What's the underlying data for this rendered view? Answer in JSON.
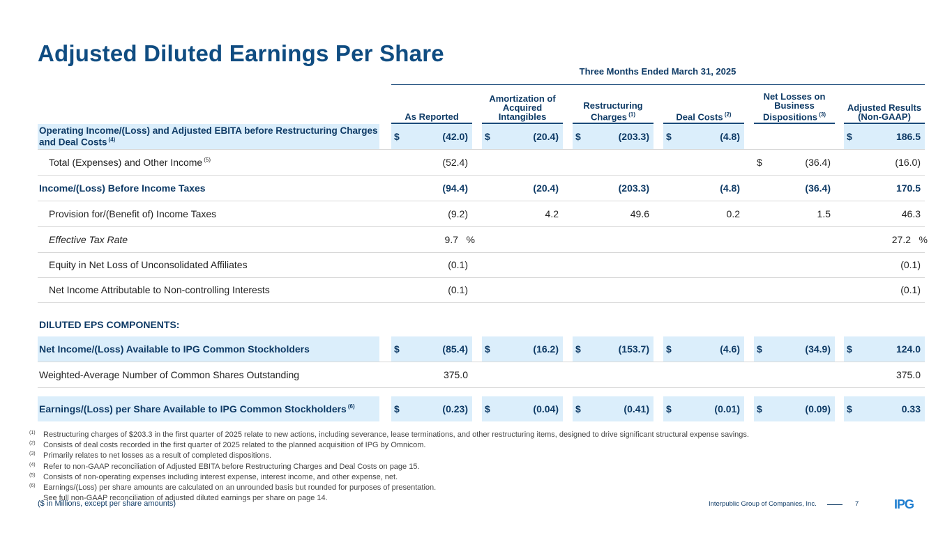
{
  "title": "Adjusted Diluted Earnings Per Share",
  "period": "Three Months Ended March 31, 2025",
  "columns": [
    {
      "label": "As Reported",
      "sup": ""
    },
    {
      "label": "Amortization of Acquired Intangibles",
      "sup": ""
    },
    {
      "label": "Restructuring Charges",
      "sup": "(1)"
    },
    {
      "label": "Deal Costs",
      "sup": "(2)"
    },
    {
      "label": "Net Losses on Business Dispositions",
      "sup": "(3)"
    },
    {
      "label": "Adjusted Results (Non-GAAP)",
      "sup": ""
    }
  ],
  "rows": [
    {
      "label": "Operating Income/(Loss) and Adjusted EBITA before Restructuring Charges and Deal Costs",
      "sup": "(4)",
      "cells": [
        {
          "cur": "$",
          "v": "(42.0)"
        },
        {
          "cur": "$",
          "v": "(20.4)"
        },
        {
          "cur": "$",
          "v": "(203.3)"
        },
        {
          "cur": "$",
          "v": "(4.8)"
        },
        {
          "cur": "",
          "v": ""
        },
        {
          "cur": "$",
          "v": "186.5"
        }
      ]
    },
    {
      "label": "Total (Expenses) and Other Income",
      "sup": "(5)",
      "cells": [
        {
          "cur": "",
          "v": "(52.4)"
        },
        {
          "cur": "",
          "v": ""
        },
        {
          "cur": "",
          "v": ""
        },
        {
          "cur": "",
          "v": ""
        },
        {
          "cur": "$",
          "v": "(36.4)"
        },
        {
          "cur": "",
          "v": "(16.0)"
        }
      ]
    },
    {
      "label": "Income/(Loss) Before Income Taxes",
      "sup": "",
      "cells": [
        {
          "cur": "",
          "v": "(94.4)"
        },
        {
          "cur": "",
          "v": "(20.4)"
        },
        {
          "cur": "",
          "v": "(203.3)"
        },
        {
          "cur": "",
          "v": "(4.8)"
        },
        {
          "cur": "",
          "v": "(36.4)"
        },
        {
          "cur": "",
          "v": "170.5"
        }
      ]
    },
    {
      "label": "Provision for/(Benefit of) Income Taxes",
      "sup": "",
      "cells": [
        {
          "cur": "",
          "v": "(9.2)"
        },
        {
          "cur": "",
          "v": "4.2"
        },
        {
          "cur": "",
          "v": "49.6"
        },
        {
          "cur": "",
          "v": "0.2"
        },
        {
          "cur": "",
          "v": "1.5"
        },
        {
          "cur": "",
          "v": "46.3"
        }
      ]
    },
    {
      "label": "Effective Tax Rate",
      "sup": "",
      "cells": [
        {
          "cur": "",
          "v": "9.7"
        },
        {
          "cur": "",
          "v": ""
        },
        {
          "cur": "",
          "v": ""
        },
        {
          "cur": "",
          "v": ""
        },
        {
          "cur": "",
          "v": ""
        },
        {
          "cur": "",
          "v": "27.2"
        }
      ],
      "pct": "%"
    },
    {
      "label": "Equity in Net Loss of Unconsolidated Affiliates",
      "sup": "",
      "cells": [
        {
          "cur": "",
          "v": "(0.1)"
        },
        {
          "cur": "",
          "v": ""
        },
        {
          "cur": "",
          "v": ""
        },
        {
          "cur": "",
          "v": ""
        },
        {
          "cur": "",
          "v": ""
        },
        {
          "cur": "",
          "v": "(0.1)"
        }
      ]
    },
    {
      "label": "Net Income Attributable to Non-controlling Interests",
      "sup": "",
      "cells": [
        {
          "cur": "",
          "v": "(0.1)"
        },
        {
          "cur": "",
          "v": ""
        },
        {
          "cur": "",
          "v": ""
        },
        {
          "cur": "",
          "v": ""
        },
        {
          "cur": "",
          "v": ""
        },
        {
          "cur": "",
          "v": "(0.1)"
        }
      ]
    }
  ],
  "section_label": "DILUTED EPS COMPONENTS:",
  "eps_rows": [
    {
      "label": "Net Income/(Loss) Available to IPG Common Stockholders",
      "sup": "",
      "cells": [
        {
          "cur": "$",
          "v": "(85.4)"
        },
        {
          "cur": "$",
          "v": "(16.2)"
        },
        {
          "cur": "$",
          "v": "(153.7)"
        },
        {
          "cur": "$",
          "v": "(4.6)"
        },
        {
          "cur": "$",
          "v": "(34.9)"
        },
        {
          "cur": "$",
          "v": "124.0"
        }
      ]
    },
    {
      "label": "Weighted-Average Number of Common Shares Outstanding",
      "sup": "",
      "cells": [
        {
          "cur": "",
          "v": "375.0"
        },
        {
          "cur": "",
          "v": ""
        },
        {
          "cur": "",
          "v": ""
        },
        {
          "cur": "",
          "v": ""
        },
        {
          "cur": "",
          "v": ""
        },
        {
          "cur": "",
          "v": "375.0"
        }
      ]
    },
    {
      "label": "Earnings/(Loss) per Share Available to IPG Common Stockholders",
      "sup": "(6)",
      "cells": [
        {
          "cur": "$",
          "v": "(0.23)"
        },
        {
          "cur": "$",
          "v": "(0.04)"
        },
        {
          "cur": "$",
          "v": "(0.41)"
        },
        {
          "cur": "$",
          "v": "(0.01)"
        },
        {
          "cur": "$",
          "v": "(0.09)"
        },
        {
          "cur": "$",
          "v": "0.33"
        }
      ]
    }
  ],
  "footnotes": [
    {
      "num": "(1)",
      "text": "Restructuring charges of $203.3 in the first quarter of 2025 relate to new actions, including severance, lease terminations, and other restructuring items, designed to drive significant structural expense savings."
    },
    {
      "num": "(2)",
      "text": "Consists of deal costs recorded in the first quarter of 2025 related to the planned acquisition of IPG by Omnicom."
    },
    {
      "num": "(3)",
      "text": "Primarily relates to net losses as a result of completed dispositions."
    },
    {
      "num": "(4)",
      "text": "Refer to non-GAAP reconciliation of Adjusted EBITA before Restructuring Charges and Deal Costs on page 15."
    },
    {
      "num": "(5)",
      "text": "Consists of non-operating expenses including interest expense, interest income, and other expense, net."
    },
    {
      "num": "(6)",
      "text": "Earnings/(Loss) per share amounts are calculated on an unrounded basis but rounded for purposes of presentation."
    },
    {
      "num": "",
      "text": "See full non-GAAP reconciliation of adjusted diluted earnings per share on page 14."
    }
  ],
  "units_note": "($ in Millions, except per share amounts)",
  "footer_company": "Interpublic Group of Companies, Inc.",
  "page_number": "7",
  "logo_text": "IPG",
  "colors": {
    "brand": "#0f4c81",
    "highlight": "#dbeefb"
  }
}
